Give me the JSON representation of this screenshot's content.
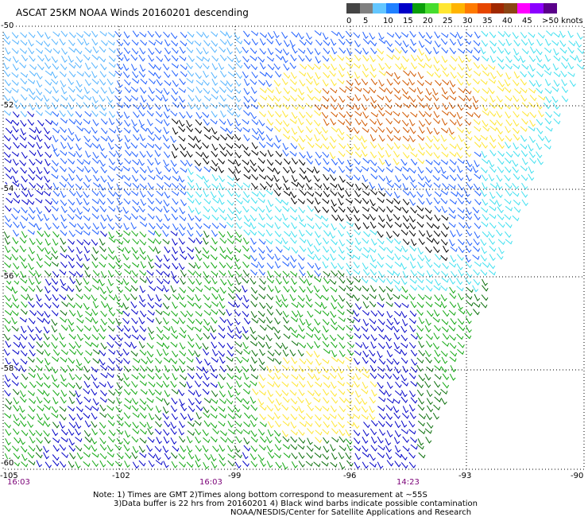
{
  "title": "ASCAT 25KM NOAA Winds 20160201 descending",
  "colorbar": {
    "labels": [
      "0",
      "5",
      "10",
      "15",
      "20",
      "25",
      "30",
      "35",
      "40",
      "45",
      ">50 knots"
    ],
    "colors": [
      "#444444",
      "#808080",
      "#63c6ff",
      "#2080ff",
      "#0000c8",
      "#0a9e0a",
      "#46dc2e",
      "#ffe632",
      "#ffb400",
      "#ff7a00",
      "#e64600",
      "#a02800",
      "#8b4513",
      "#ff00ff",
      "#8b00ff",
      "#5a008a"
    ]
  },
  "axes": {
    "lat_labels": [
      "-50",
      "-52",
      "-54",
      "-56",
      "-58",
      "-60"
    ],
    "lon_labels": [
      "-105",
      "-102",
      "-99",
      "-96",
      "-93",
      "-90"
    ],
    "time_labels": [
      "16:03",
      "16:03",
      "14:23"
    ]
  },
  "notes": {
    "line1": "Note: 1) Times are GMT 2)Times along bottom correspond to measurement at ~55S",
    "line2": "3)Data buffer is 22 hrs from 20160201 4) Black wind barbs indicate possible contamination",
    "line3": "NOAA/NESDIS/Center for Satellite Applications and Research"
  },
  "wind_colors": {
    "dark_blue": "#0000c8",
    "med_blue": "#2060ff",
    "light_blue": "#55b4ff",
    "cyan": "#40e0f0",
    "green": "#12a812",
    "dark_green": "#0a6e0a",
    "yellow": "#ffe632",
    "orange": "#d25a00",
    "black": "#000000"
  }
}
